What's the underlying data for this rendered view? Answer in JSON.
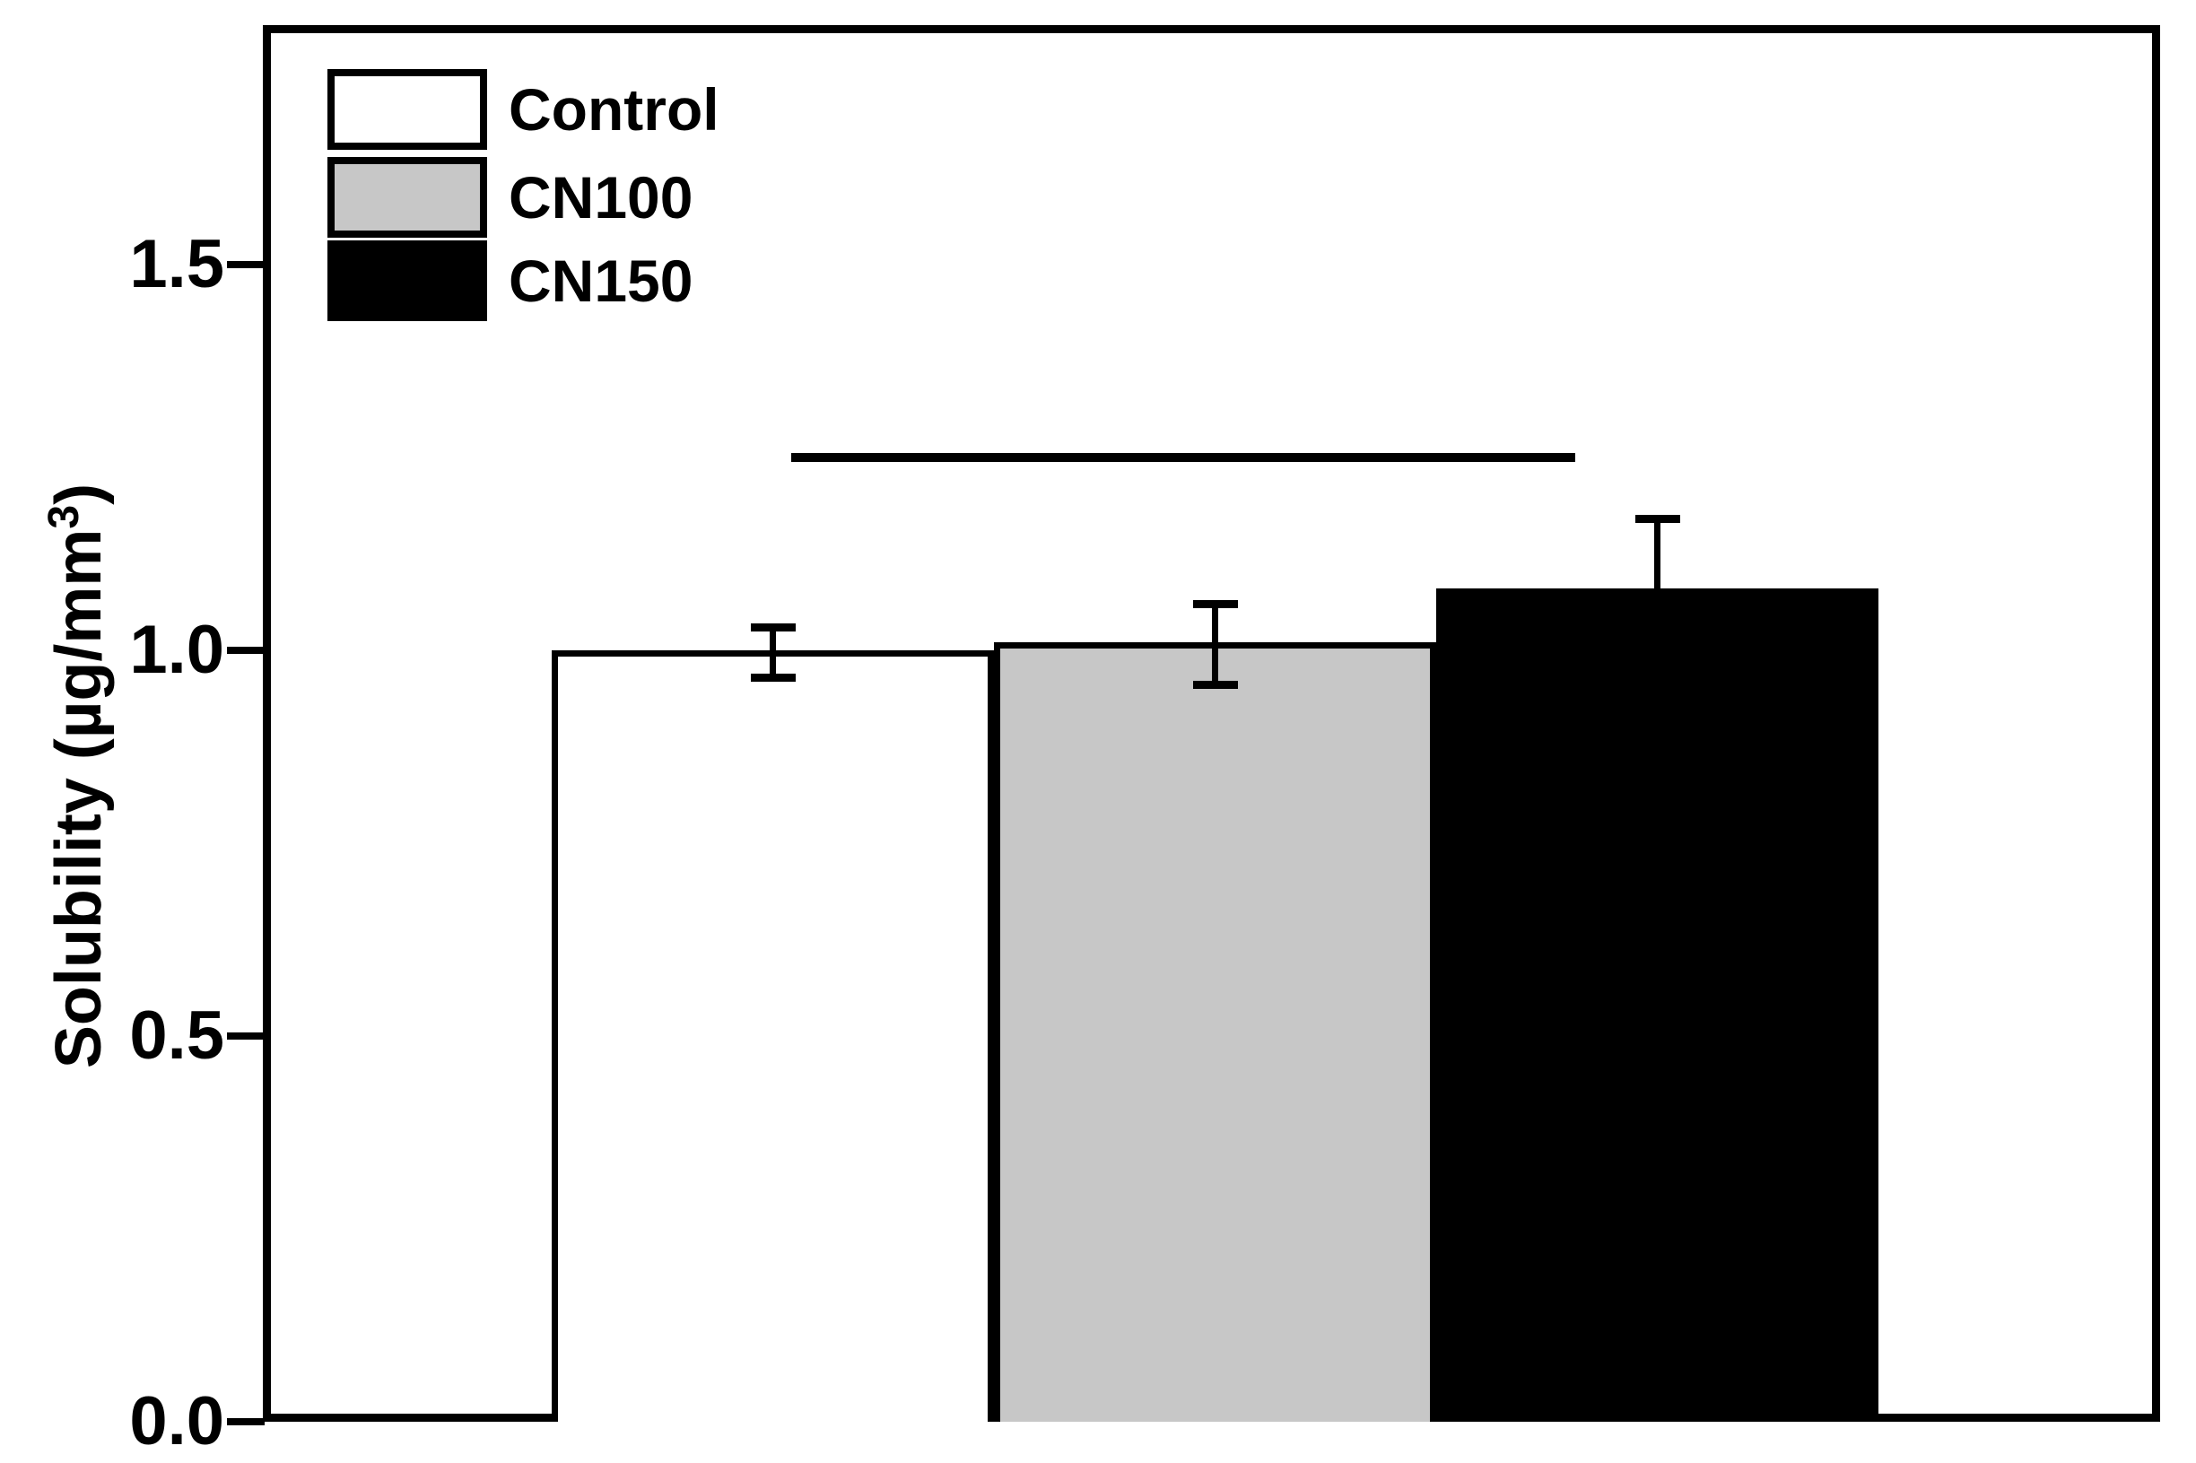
{
  "figure": {
    "background": "#ffffff",
    "frame_color": "#000000"
  },
  "y_axis": {
    "label_main": "Solubility (µg/mm",
    "label_sup": "3",
    "label_close": ")"
  },
  "chart_data": {
    "type": "bar",
    "title": "",
    "xlabel": "",
    "ylabel": "Solubility (µg/mm³)",
    "ylim": [
      0,
      1.8
    ],
    "yticks": [
      0,
      0.5,
      1.0,
      1.5
    ],
    "grid": false,
    "categories": [
      "Control",
      "CN100",
      "CN150"
    ],
    "values": [
      1.0,
      1.01,
      1.08
    ],
    "error_plus": [
      0.03,
      0.05,
      0.09
    ],
    "error_minus": [
      0.035,
      0.055,
      null
    ],
    "bar_colors": [
      "#ffffff",
      "#c7c7c7",
      "#000000"
    ],
    "bar_edge_color": "#000000",
    "legend_position": "top-left",
    "legend_entries": [
      "Control",
      "CN100",
      "CN150"
    ],
    "annotations": [
      {
        "type": "significance-line",
        "y": 1.25,
        "from": "Control",
        "to": "CN150"
      }
    ]
  }
}
